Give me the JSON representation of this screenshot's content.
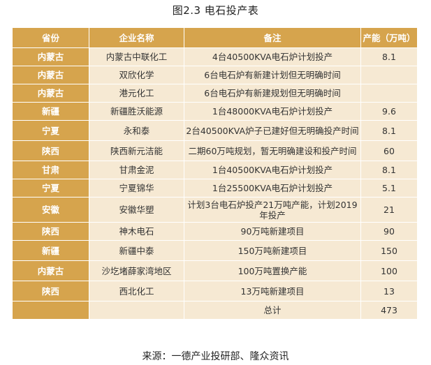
{
  "title": "图2.3  电石投产表",
  "table": {
    "headers": [
      "省份",
      "企业名称",
      "备注",
      "产能（万吨）"
    ],
    "rows": [
      {
        "province": "内蒙古",
        "company": "内蒙古中联化工",
        "note": "4台40500KVA电石炉计划投产",
        "capacity": "8.1"
      },
      {
        "province": "内蒙古",
        "company": "双欣化学",
        "note": "6台电石炉有新建计划但无明确时间",
        "capacity": ""
      },
      {
        "province": "内蒙古",
        "company": "港元化工",
        "note": "6台电石炉有新建规划但无明确时间",
        "capacity": ""
      },
      {
        "province": "新疆",
        "company": "新疆胜沃能源",
        "note": "1台48000KVA电石炉计划投产",
        "capacity": "9.6"
      },
      {
        "province": "宁夏",
        "company": "永和泰",
        "note": "2台40500KVA炉子已建好但无明确投产时间",
        "capacity": "8.1"
      },
      {
        "province": "陕西",
        "company": "陕西新元洁能",
        "note": "二期60万吨规划，暂无明确建设和投产时间",
        "capacity": "60"
      },
      {
        "province": "甘肃",
        "company": "甘肃金泥",
        "note": "1台40500KVA电石炉计划投产",
        "capacity": "8.1"
      },
      {
        "province": "宁夏",
        "company": "宁夏锦华",
        "note": "1台25500KVA电石炉计划投产",
        "capacity": "5.1"
      },
      {
        "province": "安徽",
        "company": "安徽华塑",
        "note": "计划3台电石炉投产21万吨产能，计划2019年投产",
        "capacity": "21"
      },
      {
        "province": "陕西",
        "company": "神木电石",
        "note": "90万吨新建项目",
        "capacity": "90"
      },
      {
        "province": "新疆",
        "company": "新疆中泰",
        "note": "150万吨新建项目",
        "capacity": "150"
      },
      {
        "province": "内蒙古",
        "company": "沙圪堵薛家湾地区",
        "note": "100万吨置换产能",
        "capacity": "100"
      },
      {
        "province": "陕西",
        "company": "西北化工",
        "note": "13万吨新建项目",
        "capacity": "13"
      },
      {
        "province": "",
        "company": "",
        "note": "总计",
        "capacity": "473"
      }
    ]
  },
  "source": "来源：一德产业投研部、隆众资讯",
  "colors": {
    "header": "#d6a44d",
    "row": "#f6e9d3"
  }
}
